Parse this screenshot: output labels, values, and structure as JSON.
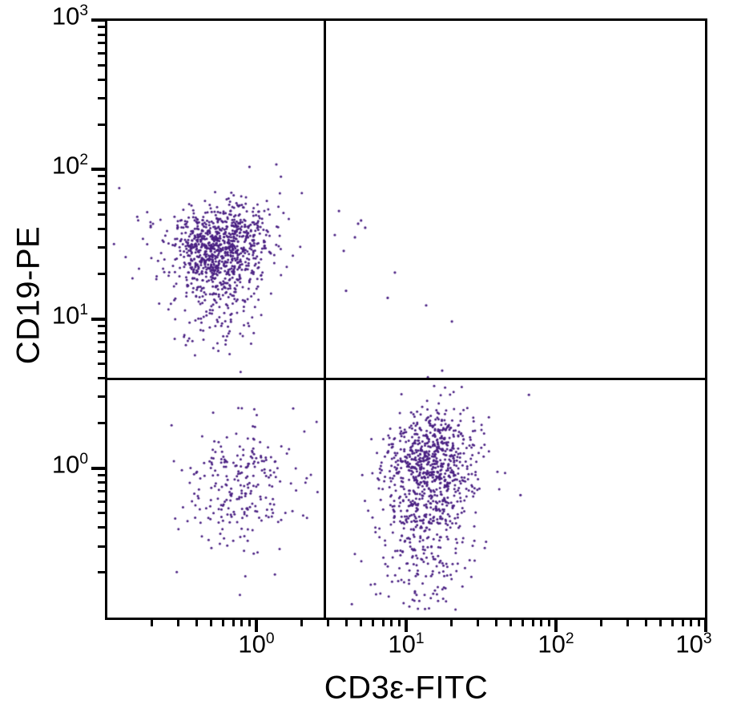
{
  "chart_data": {
    "type": "scatter",
    "variant": "flow-cytometry-dot-plot",
    "title": "",
    "xlabel": "CD3ε-FITC",
    "ylabel": "CD19-PE",
    "x_scale": "log",
    "y_scale": "log",
    "x_range": [
      0.1,
      1000
    ],
    "y_range": [
      0.1,
      1000
    ],
    "tick_base": "10",
    "x_tick_exponents": [
      0,
      1,
      2,
      3
    ],
    "y_tick_exponents": [
      0,
      1,
      2,
      3
    ],
    "minor_tick_multiples": [
      2,
      3,
      4,
      5,
      6,
      7,
      8,
      9
    ],
    "grid": false,
    "legend": false,
    "dot_color": "#4a2083",
    "dot_radius_px": 1.5,
    "quadrant_gate": {
      "x": 2.85,
      "y": 4.0
    },
    "populations": [
      {
        "name": "CD19+ B cells (upper-left core)",
        "n": 760,
        "mean_log": [
          -0.235,
          1.49
        ],
        "sigma_log": [
          0.165,
          0.135
        ],
        "rho": 0.25,
        "approx_center": [
          0.58,
          31
        ]
      },
      {
        "name": "CD19+ B cells (lower tail)",
        "n": 220,
        "mean_log": [
          -0.24,
          1.17
        ],
        "sigma_log": [
          0.155,
          0.2
        ],
        "rho": 0,
        "approx_center": [
          0.58,
          15
        ]
      },
      {
        "name": "CD19+ B cells (left fringe)",
        "n": 45,
        "mean_log": [
          -0.48,
          1.46
        ],
        "sigma_log": [
          0.27,
          0.17
        ],
        "rho": 0,
        "approx_center": [
          0.33,
          29
        ]
      },
      {
        "name": "double-negative cells (lower-left)",
        "n": 250,
        "mean_log": [
          -0.1,
          -0.12
        ],
        "sigma_log": [
          0.21,
          0.22
        ],
        "rho": 0,
        "approx_center": [
          0.79,
          0.76
        ]
      },
      {
        "name": "CD3+ T cells (lower-right core)",
        "n": 700,
        "mean_log": [
          1.16,
          0.03
        ],
        "sigma_log": [
          0.155,
          0.185
        ],
        "rho": 0.1,
        "approx_center": [
          14.5,
          1.07
        ]
      },
      {
        "name": "CD3+ T cells (lower tail)",
        "n": 290,
        "mean_log": [
          1.13,
          -0.42
        ],
        "sigma_log": [
          0.175,
          0.27
        ],
        "rho": 0,
        "approx_center": [
          13.5,
          0.38
        ]
      }
    ],
    "outlier_points": [
      [
        3.56,
        52.7
      ],
      [
        4.78,
        43.3
      ],
      [
        5.0,
        45.5
      ],
      [
        5.33,
        40.7
      ],
      [
        3.34,
        36.4
      ],
      [
        4.55,
        35.1
      ],
      [
        3.83,
        28.5
      ],
      [
        8.41,
        20.4
      ],
      [
        3.97,
        15.4
      ],
      [
        7.53,
        13.8
      ],
      [
        13.6,
        12.3
      ],
      [
        20.2,
        9.6
      ],
      [
        17.4,
        4.5
      ],
      [
        66,
        3.1
      ],
      [
        58,
        0.66
      ],
      [
        0.9,
        104
      ],
      [
        1.36,
        108
      ]
    ],
    "seed": 1337
  }
}
